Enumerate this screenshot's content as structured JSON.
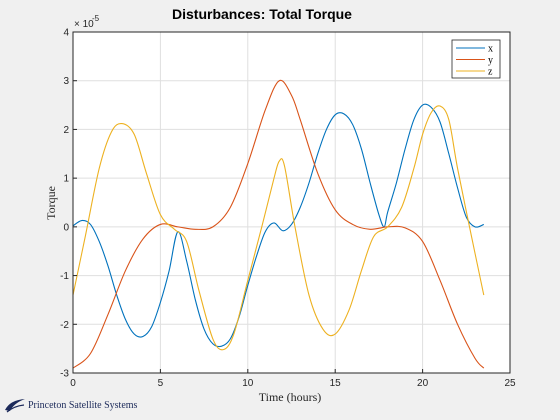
{
  "chart_data": {
    "type": "line",
    "title": "Disturbances: Total Torque",
    "xlabel": "Time (hours)",
    "ylabel": "Torque",
    "y_exponent_label": "× 10",
    "y_exponent_power": "-5",
    "xlim": [
      0,
      25
    ],
    "ylim": [
      -3,
      4
    ],
    "xticks": [
      0,
      5,
      10,
      15,
      20,
      25
    ],
    "yticks": [
      -3,
      -2,
      -1,
      0,
      1,
      2,
      3,
      4
    ],
    "grid": true,
    "legend_position": "top-right",
    "series": [
      {
        "name": "x",
        "color": "#0072bd",
        "x": [
          0,
          0.5,
          1,
          1.5,
          2,
          2.5,
          3,
          3.5,
          4,
          4.5,
          5,
          5.5,
          6,
          6.5,
          7,
          7.5,
          8,
          8.5,
          9,
          9.5,
          10,
          10.5,
          11,
          11.5,
          12,
          12.5,
          13,
          13.5,
          14,
          14.5,
          15,
          15.5,
          16,
          16.5,
          17,
          17.5,
          17.8,
          18,
          18.5,
          19,
          19.5,
          20,
          20.5,
          21,
          21.5,
          22,
          22.5,
          23,
          23.5
        ],
        "y": [
          0.02,
          0.13,
          0.05,
          -0.3,
          -0.8,
          -1.4,
          -1.9,
          -2.2,
          -2.25,
          -2.05,
          -1.55,
          -0.9,
          -0.1,
          -0.7,
          -1.5,
          -2.1,
          -2.4,
          -2.45,
          -2.3,
          -1.85,
          -1.2,
          -0.6,
          -0.1,
          0.08,
          -0.08,
          0.05,
          0.4,
          0.9,
          1.5,
          2.0,
          2.3,
          2.32,
          2.1,
          1.6,
          0.9,
          0.25,
          0.0,
          0.3,
          0.9,
          1.6,
          2.2,
          2.5,
          2.45,
          2.15,
          1.5,
          0.8,
          0.2,
          0.0,
          0.05
        ]
      },
      {
        "name": "y",
        "color": "#d95319",
        "x": [
          0,
          1,
          2,
          3,
          4,
          5,
          6,
          7,
          8,
          9,
          10,
          11,
          11.8,
          12.5,
          13,
          14,
          15,
          16,
          17,
          18,
          19,
          20,
          21,
          22,
          23,
          23.5
        ],
        "y": [
          -2.9,
          -2.6,
          -1.8,
          -0.9,
          -0.25,
          0.05,
          0.0,
          -0.05,
          0.0,
          0.4,
          1.3,
          2.4,
          3.0,
          2.7,
          2.2,
          1.1,
          0.35,
          0.05,
          -0.05,
          0.0,
          -0.02,
          -0.3,
          -1.1,
          -2.0,
          -2.7,
          -2.9
        ]
      },
      {
        "name": "z",
        "color": "#edb120",
        "x": [
          0,
          0.7,
          1.5,
          2.2,
          2.8,
          3.5,
          4.2,
          5,
          5.8,
          6.5,
          7.2,
          8,
          8.6,
          9.2,
          10,
          10.8,
          11.5,
          11.8,
          12.1,
          12.7,
          13.5,
          14.3,
          15,
          15.8,
          16.5,
          17.2,
          18,
          18.8,
          19.5,
          20,
          20.5,
          21,
          21.5,
          22,
          22.8,
          23.5
        ],
        "y": [
          -1.4,
          -0.2,
          1.2,
          1.95,
          2.12,
          1.9,
          1.1,
          0.25,
          -0.05,
          -0.3,
          -1.3,
          -2.3,
          -2.52,
          -2.2,
          -1.1,
          0.0,
          1.0,
          1.35,
          1.25,
          0.0,
          -1.4,
          -2.1,
          -2.2,
          -1.7,
          -0.9,
          -0.2,
          0.0,
          0.4,
          1.2,
          1.9,
          2.35,
          2.48,
          2.2,
          1.2,
          -0.2,
          -1.4
        ]
      }
    ]
  },
  "brand": {
    "label": "Princeton Satellite Systems",
    "logo_icon": "swoosh-logo-icon"
  }
}
